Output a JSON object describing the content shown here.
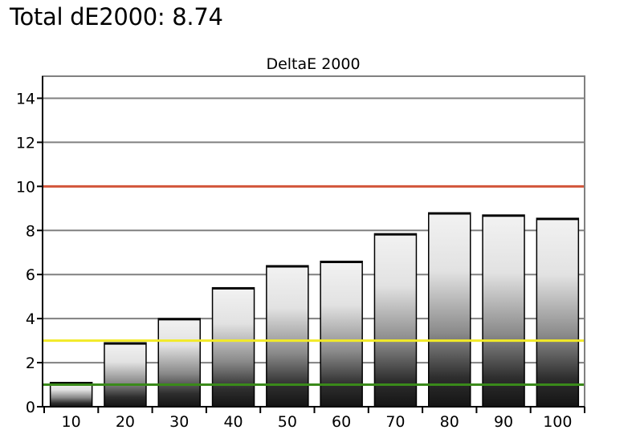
{
  "page_title": "Total dE2000: 8.74",
  "chart_data": {
    "type": "bar",
    "title": "DeltaE 2000",
    "xlabel": "",
    "ylabel": "",
    "categories": [
      "10",
      "20",
      "30",
      "40",
      "50",
      "60",
      "70",
      "80",
      "90",
      "100"
    ],
    "values": [
      1.1,
      2.9,
      4.0,
      5.4,
      6.4,
      6.6,
      7.85,
      8.8,
      8.7,
      8.55
    ],
    "ylim": [
      0,
      15
    ],
    "yticks": [
      0,
      2,
      4,
      6,
      8,
      10,
      12,
      14
    ],
    "grid": true,
    "reference_lines": [
      {
        "value": 10,
        "color": "#d2553a"
      },
      {
        "value": 3,
        "color": "#f2ea27"
      },
      {
        "value": 1,
        "color": "#3a8a1a"
      }
    ],
    "colors": {
      "gridline": "#808080",
      "bar_outline": "#000000",
      "bar_light": "#f0f0f0",
      "bar_dark": "#151515"
    }
  }
}
